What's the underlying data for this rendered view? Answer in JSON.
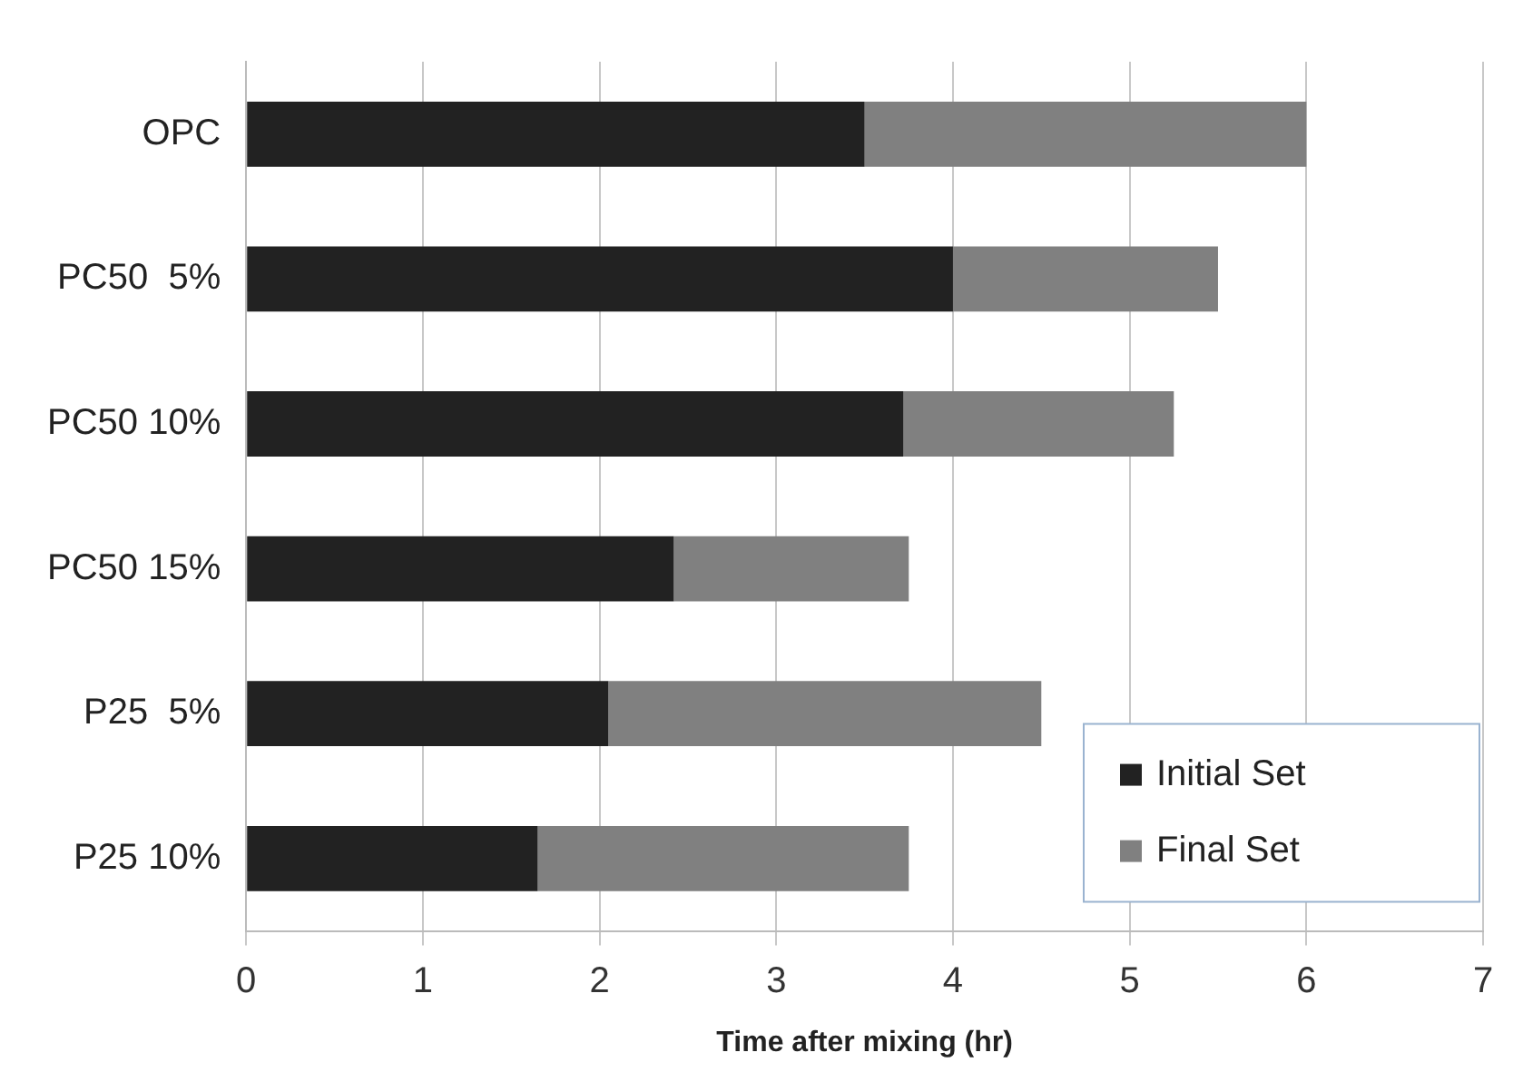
{
  "chart_data": {
    "type": "bar",
    "orientation": "horizontal",
    "stacked": true,
    "xlabel": "Time after mixing (hr)",
    "categories": [
      "OPC",
      "PC50  5%",
      "PC50 10%",
      "PC50 15%",
      "P25  5%",
      "P25 10%"
    ],
    "series": [
      {
        "name": "Initial Set",
        "color": "#222222",
        "values": [
          3.5,
          4.0,
          3.72,
          2.42,
          2.05,
          1.65
        ]
      },
      {
        "name": "Final Set",
        "color": "#808080",
        "values": [
          2.5,
          1.5,
          1.53,
          1.33,
          2.45,
          2.1
        ]
      }
    ],
    "xlim": [
      0,
      7
    ],
    "xticks": [
      0,
      1,
      2,
      3,
      4,
      5,
      6,
      7
    ],
    "grid": "x",
    "legend": "bottom right"
  }
}
